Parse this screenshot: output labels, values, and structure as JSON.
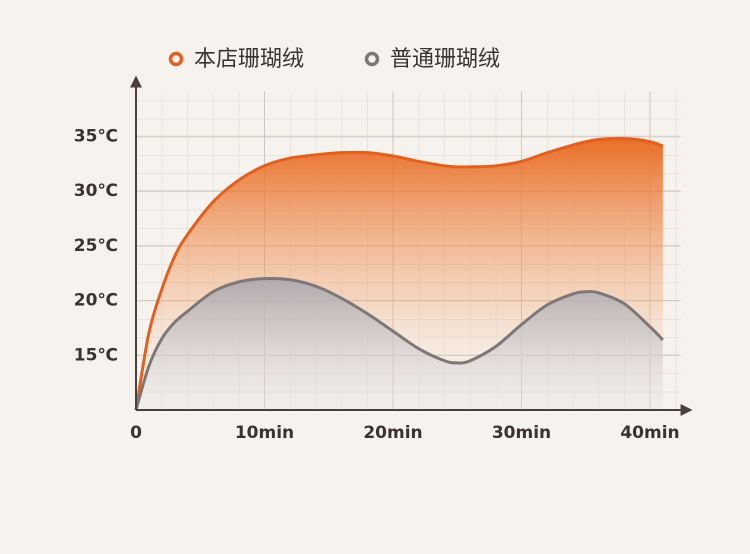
{
  "chart_data": {
    "type": "line",
    "x": [
      0,
      1,
      2,
      3,
      4,
      6,
      8,
      10,
      12,
      14,
      16,
      18,
      20,
      22,
      24,
      25,
      26,
      28,
      30,
      32,
      34,
      35,
      36,
      38,
      40,
      41
    ],
    "series": [
      {
        "name": "本店珊瑚绒",
        "color": "#e2601e",
        "values": [
          10,
          17,
          21,
          24,
          26,
          29,
          31,
          32.3,
          33,
          33.3,
          33.5,
          33.5,
          33.2,
          32.7,
          32.3,
          32.2,
          32.2,
          32.3,
          32.7,
          33.5,
          34.2,
          34.5,
          34.7,
          34.8,
          34.5,
          34.1
        ]
      },
      {
        "name": "普通珊瑚绒",
        "color": "#7d7877",
        "values": [
          10,
          14,
          16.5,
          18,
          19,
          20.8,
          21.7,
          22,
          21.9,
          21.3,
          20.2,
          18.8,
          17.2,
          15.6,
          14.5,
          14.3,
          14.5,
          15.8,
          17.8,
          19.6,
          20.6,
          20.8,
          20.7,
          19.7,
          17.6,
          16.4
        ]
      }
    ],
    "xlim": [
      0,
      43
    ],
    "ylim": [
      10,
      40
    ],
    "xticks": [
      0,
      {
        "value": 10,
        "label": "10min"
      },
      {
        "value": 20,
        "label": "20min"
      },
      {
        "value": 30,
        "label": "30min"
      },
      {
        "value": 40,
        "label": "40min"
      }
    ],
    "yticks": [
      {
        "value": 15,
        "label": "15℃"
      },
      {
        "value": 20,
        "label": "20℃"
      },
      {
        "value": 25,
        "label": "25℃"
      },
      {
        "value": 30,
        "label": "30℃"
      },
      {
        "value": 35,
        "label": "35℃"
      }
    ],
    "grid": true,
    "legend": "top"
  }
}
